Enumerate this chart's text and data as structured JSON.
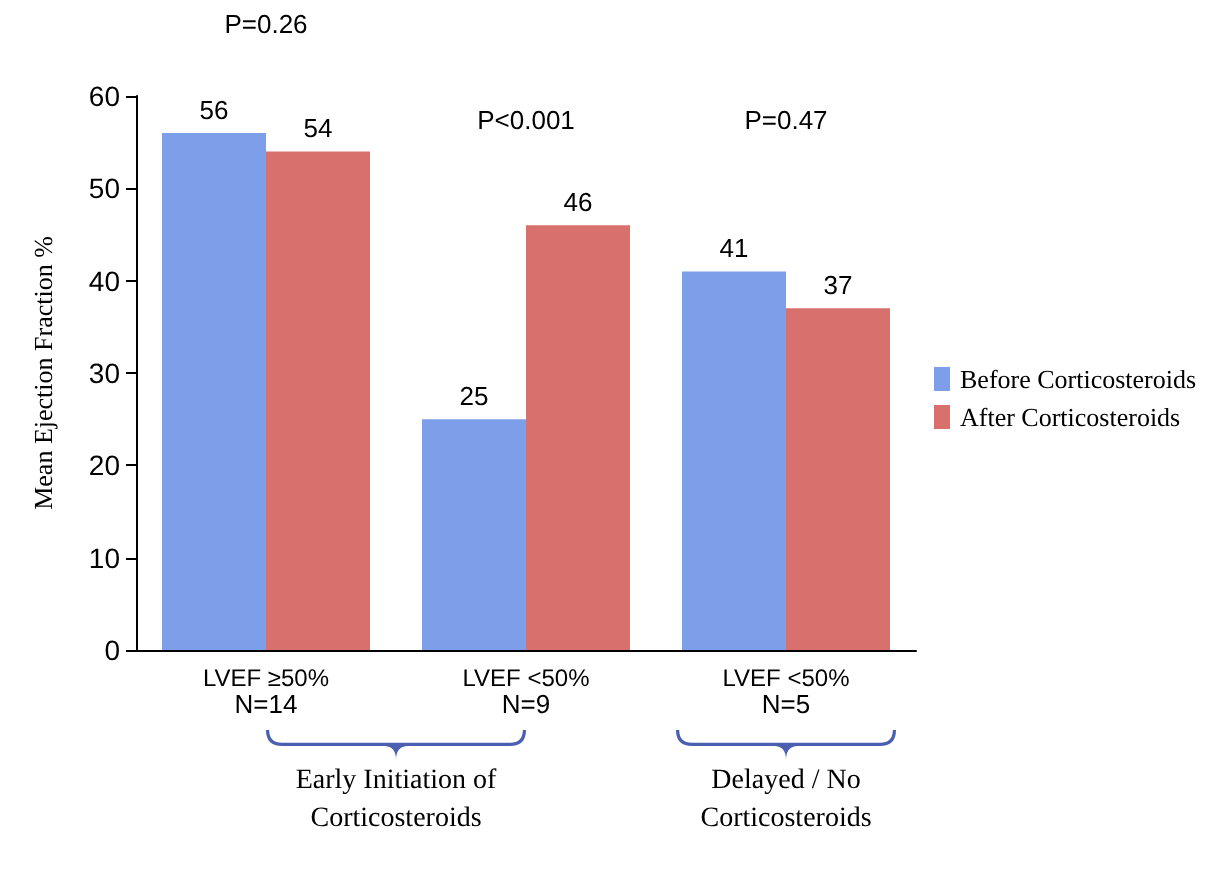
{
  "chart_data": {
    "type": "bar",
    "ylabel": "Mean Ejection Fraction %",
    "categories": [
      "LVEF ≥50%",
      "LVEF <50%",
      "LVEF <50%"
    ],
    "series": [
      {
        "name": "Before Corticosteroids",
        "color": "#7d9ee8",
        "values": [
          56,
          25,
          41
        ]
      },
      {
        "name": "After Corticosteroids",
        "color": "#d8716d",
        "values": [
          54,
          46,
          37
        ]
      }
    ],
    "ylim": [
      0,
      60
    ],
    "yticks": [
      0,
      10,
      20,
      30,
      40,
      50,
      60
    ],
    "grid": false,
    "legend": "right",
    "data_labels": true,
    "annotations": [
      "P=0.26",
      "P<0.001",
      "P=0.47",
      "N=14",
      "N=9",
      "N=5",
      "Early Initiation of\nCorticosteroids",
      "Delayed / No\nCorticosteroids"
    ]
  }
}
